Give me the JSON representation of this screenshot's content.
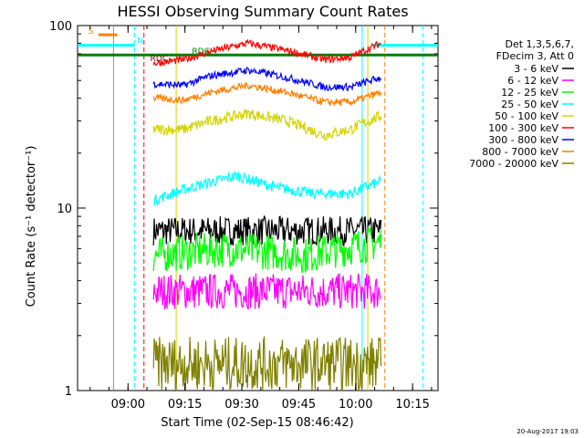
{
  "chart_data": {
    "type": "line",
    "title": "HESSI Observing Summary Count Rates",
    "xlabel": "Start Time (02-Sep-15 08:46:42)",
    "ylabel": "Count Rate (s⁻¹ detector⁻¹)",
    "x_unit": "minutes after 08:46:42",
    "xlim": [
      0,
      95
    ],
    "ylim": [
      1,
      100
    ],
    "yscale": "log",
    "x_ticks": [
      {
        "x": 13.3,
        "label": "09:00"
      },
      {
        "x": 28.3,
        "label": "09:15"
      },
      {
        "x": 43.3,
        "label": "09:30"
      },
      {
        "x": 58.3,
        "label": "09:45"
      },
      {
        "x": 73.3,
        "label": "10:00"
      },
      {
        "x": 88.3,
        "label": "10:15"
      }
    ],
    "y_ticks": [
      {
        "y": 1,
        "label": "1"
      },
      {
        "y": 10,
        "label": "10"
      },
      {
        "y": 100,
        "label": "100"
      }
    ],
    "legend": {
      "placement": "outside-right",
      "header": [
        "Det 1,3,5,6,7,",
        "FDecim 3, Att 0"
      ],
      "entries": [
        {
          "label": "3 - 6 keV",
          "color": "#000000"
        },
        {
          "label": "6 - 12 keV",
          "color": "#ff00ff"
        },
        {
          "label": "12 - 25 keV",
          "color": "#00ff00"
        },
        {
          "label": "25 - 50 keV",
          "color": "#00ffff"
        },
        {
          "label": "50 - 100 keV",
          "color": "#d4d400"
        },
        {
          "label": "100 - 300 keV",
          "color": "#ff0000"
        },
        {
          "label": "300 - 800 keV",
          "color": "#0000ff"
        },
        {
          "label": "800 - 7000 keV",
          "color": "#ff8000"
        },
        {
          "label": "7000 - 20000 keV",
          "color": "#808000"
        }
      ]
    },
    "series": [
      {
        "name": "3 - 6 keV",
        "color": "#000000",
        "x_range": [
          20,
          80
        ],
        "points": [
          [
            20,
            7.5
          ],
          [
            35,
            7.5
          ],
          [
            50,
            7.5
          ],
          [
            65,
            7.5
          ],
          [
            80,
            7.5
          ]
        ],
        "spread": 0.08
      },
      {
        "name": "6 - 12 keV",
        "color": "#ff00ff",
        "x_range": [
          20,
          80
        ],
        "points": [
          [
            20,
            3.5
          ],
          [
            35,
            3.5
          ],
          [
            50,
            3.5
          ],
          [
            65,
            3.5
          ],
          [
            80,
            3.5
          ]
        ],
        "spread": 0.1
      },
      {
        "name": "12 - 25 keV",
        "color": "#00ff00",
        "x_range": [
          20,
          80
        ],
        "points": [
          [
            20,
            5.5
          ],
          [
            40,
            6.0
          ],
          [
            60,
            5.5
          ],
          [
            80,
            6.5
          ]
        ],
        "spread": 0.1
      },
      {
        "name": "25 - 50 keV",
        "color": "#00ffff",
        "x_range": [
          20,
          80
        ],
        "points": [
          [
            20,
            11
          ],
          [
            30,
            13
          ],
          [
            42,
            15
          ],
          [
            52,
            13
          ],
          [
            62,
            12
          ],
          [
            72,
            12
          ],
          [
            80,
            14
          ]
        ],
        "spread": 0.03
      },
      {
        "name": "50 - 100 keV",
        "color": "#d4d400",
        "x_range": [
          20,
          80
        ],
        "points": [
          [
            20,
            27
          ],
          [
            28,
            27
          ],
          [
            35,
            30
          ],
          [
            45,
            33
          ],
          [
            55,
            30
          ],
          [
            65,
            25
          ],
          [
            72,
            27
          ],
          [
            80,
            32
          ]
        ],
        "spread": 0.03
      },
      {
        "name": "100 - 300 keV",
        "color": "#ff0000",
        "x_range": [
          20,
          80
        ],
        "points": [
          [
            20,
            62
          ],
          [
            28,
            65
          ],
          [
            35,
            72
          ],
          [
            45,
            80
          ],
          [
            55,
            73
          ],
          [
            65,
            65
          ],
          [
            72,
            67
          ],
          [
            80,
            80
          ]
        ],
        "spread": 0.02
      },
      {
        "name": "300 - 800 keV",
        "color": "#0000ff",
        "x_range": [
          20,
          80
        ],
        "points": [
          [
            20,
            48
          ],
          [
            28,
            47
          ],
          [
            35,
            53
          ],
          [
            45,
            57
          ],
          [
            55,
            52
          ],
          [
            65,
            46
          ],
          [
            72,
            46
          ],
          [
            80,
            52
          ]
        ],
        "spread": 0.02
      },
      {
        "name": "800 - 7000 keV",
        "color": "#ff8000",
        "x_range": [
          20,
          80
        ],
        "points": [
          [
            20,
            40
          ],
          [
            28,
            39
          ],
          [
            35,
            43
          ],
          [
            45,
            47
          ],
          [
            55,
            43
          ],
          [
            65,
            38
          ],
          [
            72,
            38
          ],
          [
            80,
            43
          ]
        ],
        "spread": 0.02
      },
      {
        "name": "7000 - 20000 keV",
        "color": "#808000",
        "x_range": [
          20,
          80
        ],
        "points": [
          [
            20,
            1.4
          ],
          [
            40,
            1.4
          ],
          [
            60,
            1.4
          ],
          [
            80,
            1.4
          ]
        ],
        "spread": 0.15
      }
    ],
    "vertical_markers": [
      {
        "x": 9.5,
        "color": "#ff8000",
        "style": "solid"
      },
      {
        "x": 15.0,
        "color": "#00ffff",
        "style": "dashed"
      },
      {
        "x": 17.5,
        "color": "#ff0000",
        "style": "dashed"
      },
      {
        "x": 26.0,
        "color": "#d4d400",
        "style": "solid"
      },
      {
        "x": 75.0,
        "color": "#00ffff",
        "style": "solid"
      },
      {
        "x": 76.5,
        "color": "#d4d400",
        "style": "solid"
      },
      {
        "x": 81.0,
        "color": "#ff8000",
        "style": "dashed"
      },
      {
        "x": 91.0,
        "color": "#00ffff",
        "style": "dashed"
      }
    ],
    "horizontal_bands": [
      {
        "label": "S",
        "color": "#ff8000",
        "x_start": 5.5,
        "x_end": 10.5,
        "y": 89
      },
      {
        "label": "N",
        "color": "#00ffff",
        "x_start": 0,
        "x_end": 15,
        "y": 78
      },
      {
        "label": "N",
        "color": "#00ffff",
        "x_start": 78,
        "x_end": 95,
        "y": 78
      },
      {
        "label": "RDC",
        "color": "#008000",
        "x_start": 0,
        "x_end": 95,
        "y": 69
      }
    ],
    "annotations": [
      {
        "text": "S",
        "color": "#ff8000",
        "x": 3.5,
        "y": 90
      },
      {
        "text": "N",
        "color": "#00ffff",
        "x": 16.5,
        "y": 80
      },
      {
        "text": "RDC",
        "color": "#008000",
        "x": 32.5,
        "y": 70
      },
      {
        "text": "RDC",
        "color": "#800000",
        "x": 21.5,
        "y": 64
      }
    ]
  },
  "footer": {
    "timestamp": "20-Aug-2017 19:03"
  }
}
